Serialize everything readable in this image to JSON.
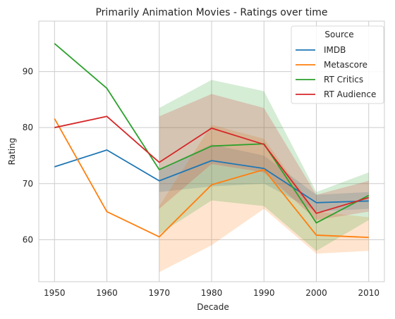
{
  "chart_data": {
    "type": "line",
    "title": "Primarily Animation Movies - Ratings over time",
    "xlabel": "Decade",
    "ylabel": "Rating",
    "x": [
      1950,
      1960,
      1970,
      1980,
      1990,
      2000,
      2010
    ],
    "xlim": [
      1947,
      2013
    ],
    "ylim": [
      52.5,
      99.0
    ],
    "yticks": [
      60,
      70,
      80,
      90
    ],
    "grid": true,
    "legend": {
      "title": "Source",
      "placement": "top-right"
    },
    "series": [
      {
        "name": "IMDB",
        "color": "#1f77b4",
        "values": [
          73.0,
          76.0,
          70.5,
          74.1,
          72.7,
          66.6,
          66.9
        ],
        "ci_lower": [
          null,
          null,
          68.5,
          69.5,
          70.0,
          65.0,
          65.5
        ],
        "ci_upper": [
          null,
          null,
          72.5,
          77.0,
          75.0,
          68.0,
          68.5
        ]
      },
      {
        "name": "Metascore",
        "color": "#ff7f0e",
        "values": [
          81.6,
          65.0,
          60.5,
          69.8,
          72.5,
          60.8,
          60.4
        ],
        "ci_lower": [
          null,
          null,
          54.2,
          59.0,
          65.5,
          57.5,
          58.0
        ],
        "ci_upper": [
          null,
          null,
          66.0,
          80.5,
          78.0,
          65.0,
          64.0
        ]
      },
      {
        "name": "RT Critics",
        "color": "#2ca02c",
        "values": [
          95.0,
          87.0,
          72.5,
          76.7,
          77.1,
          63.0,
          67.9
        ],
        "ci_lower": [
          null,
          null,
          61.0,
          67.0,
          66.0,
          58.0,
          63.5
        ],
        "ci_upper": [
          null,
          null,
          83.5,
          88.5,
          86.5,
          68.5,
          72.0
        ]
      },
      {
        "name": "RT Audience",
        "color": "#d62728",
        "values": [
          80.0,
          82.0,
          73.8,
          79.9,
          77.0,
          64.7,
          67.5
        ],
        "ci_lower": [
          null,
          null,
          65.5,
          73.5,
          72.0,
          63.5,
          65.0
        ],
        "ci_upper": [
          null,
          null,
          82.0,
          86.0,
          83.5,
          68.0,
          70.5
        ]
      }
    ]
  }
}
